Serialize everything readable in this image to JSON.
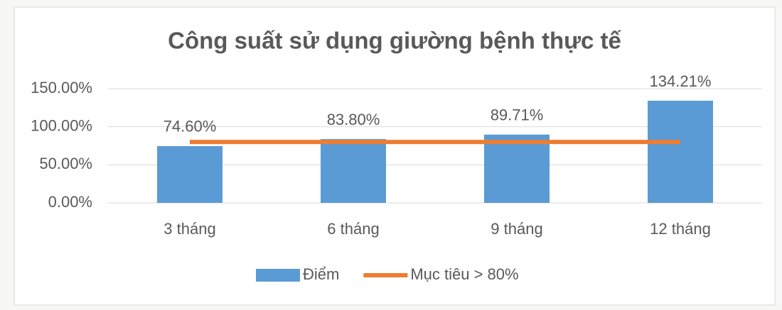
{
  "chart_data": {
    "type": "bar",
    "title": "Công suất sử dụng giường bệnh thực tế",
    "categories": [
      "3 tháng",
      "6 tháng",
      "9 tháng",
      "12 tháng"
    ],
    "series": [
      {
        "name": "Điểm",
        "type": "bar",
        "color": "#5b9bd5",
        "values": [
          74.6,
          83.8,
          89.71,
          134.21
        ],
        "value_labels": [
          "74.60%",
          "83.80%",
          "89.71%",
          "134.21%"
        ]
      },
      {
        "name": "Mục tiêu > 80%",
        "type": "line",
        "color": "#ed7d31",
        "values": [
          80,
          80,
          80,
          80
        ]
      }
    ],
    "ylim": [
      0,
      150
    ],
    "yticks": [
      {
        "value": 0,
        "label": "0.00%"
      },
      {
        "value": 50,
        "label": "50.00%"
      },
      {
        "value": 100,
        "label": "100.00%"
      },
      {
        "value": 150,
        "label": "150.00%"
      }
    ],
    "grid": true,
    "legend": "bottom"
  }
}
